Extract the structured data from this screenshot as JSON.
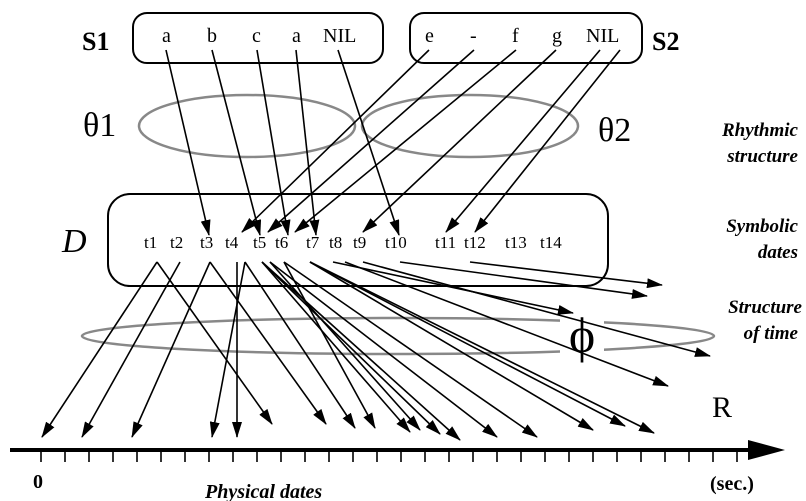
{
  "sequences": {
    "s1": {
      "name": "S1",
      "items": [
        "a",
        "b",
        "c",
        "a",
        "NIL"
      ]
    },
    "s2": {
      "name": "S2",
      "items": [
        "e",
        "-",
        "f",
        "g",
        "NIL"
      ]
    }
  },
  "thetas": {
    "t1": "θ1",
    "t2": "θ2"
  },
  "dates_set": {
    "name": "D",
    "labels": [
      "t1",
      "t2",
      "t3",
      "t4",
      "t5",
      "t6",
      "t7",
      "t8",
      "t9",
      "t10",
      "t11",
      "t12",
      "t13",
      "t14"
    ]
  },
  "phi": "ϕ",
  "real_axis": {
    "name": "R",
    "origin": "0",
    "unit": "(sec.)",
    "caption": "Physical dates"
  },
  "side_labels": {
    "rhythmic": [
      "Rhythmic",
      "structure"
    ],
    "symbolic": [
      "Symbolic",
      "dates"
    ],
    "time": [
      "Structure",
      "of time"
    ]
  },
  "colors": {
    "ink": "#000000",
    "ellipse": "#888888"
  }
}
